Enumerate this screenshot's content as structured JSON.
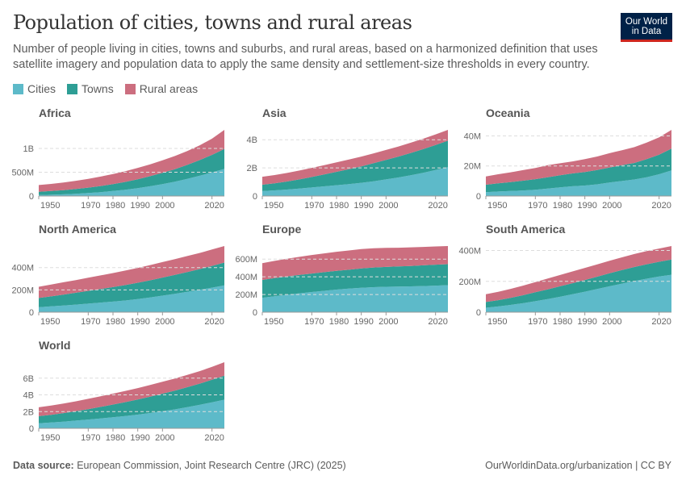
{
  "header": {
    "title": "Population of cities, towns and rural areas",
    "subtitle": "Number of people living in cities, towns and suburbs, and rural areas, based on a harmonized definition that uses satellite imagery and population data to apply the same density and settlement-size thresholds in every country.",
    "logo_text": "Our World in Data"
  },
  "footer": {
    "source_label": "Data source:",
    "source": "European Commission, Joint Research Centre (JRC) (2025)",
    "link": "OurWorldinData.org/urbanization | CC BY"
  },
  "colors": {
    "Cities": "#5dbac9",
    "Towns": "#2e9e95",
    "Rural areas": "#cc6e7f"
  },
  "chart_data": {
    "type": "area",
    "stacked": true,
    "legend": [
      "Cities",
      "Towns",
      "Rural areas"
    ],
    "legend_placement": "top-left",
    "x": [
      1950,
      1955,
      1960,
      1965,
      1970,
      1975,
      1980,
      1985,
      1990,
      1995,
      2000,
      2005,
      2010,
      2015,
      2020,
      2025
    ],
    "x_ticks": [
      1950,
      1970,
      1980,
      1990,
      2000,
      2020
    ],
    "unit": "millions of people",
    "grid": "horizontal dashed",
    "panels": [
      {
        "name": "Africa",
        "y_ticks": [
          {
            "v": 0,
            "l": "0"
          },
          {
            "v": 500,
            "l": "500M"
          },
          {
            "v": 1000,
            "l": "1B"
          }
        ],
        "series": [
          {
            "name": "Cities",
            "values": [
              20,
              27,
              36,
              48,
              63,
              82,
              105,
              132,
              165,
              205,
              250,
              300,
              360,
              425,
              495,
              570
            ]
          },
          {
            "name": "Towns",
            "values": [
              70,
              78,
              88,
              100,
              113,
              128,
              145,
              165,
              188,
              212,
              238,
              265,
              295,
              330,
              370,
              420
            ]
          },
          {
            "name": "Rural areas",
            "values": [
              140,
              150,
              160,
              172,
              185,
              198,
              212,
              225,
              238,
              250,
              262,
              275,
              290,
              310,
              340,
              400
            ]
          }
        ]
      },
      {
        "name": "Asia",
        "y_ticks": [
          {
            "v": 0,
            "l": "0"
          },
          {
            "v": 2000,
            "l": "2B"
          },
          {
            "v": 4000,
            "l": "4B"
          }
        ],
        "series": [
          {
            "name": "Cities",
            "values": [
              350,
              400,
              460,
              530,
              610,
              690,
              770,
              850,
              940,
              1050,
              1180,
              1320,
              1480,
              1650,
              1850,
              2050
            ]
          },
          {
            "name": "Towns",
            "values": [
              450,
              500,
              570,
              650,
              740,
              840,
              950,
              1060,
              1170,
              1280,
              1380,
              1480,
              1580,
              1680,
              1780,
              1880
            ]
          },
          {
            "name": "Rural areas",
            "values": [
              570,
              590,
              610,
              630,
              650,
              660,
              670,
              680,
              690,
              700,
              710,
              720,
              730,
              740,
              750,
              770
            ]
          }
        ]
      },
      {
        "name": "Oceania",
        "y_ticks": [
          {
            "v": 0,
            "l": "0"
          },
          {
            "v": 20,
            "l": "20M"
          },
          {
            "v": 40,
            "l": "40M"
          }
        ],
        "series": [
          {
            "name": "Cities",
            "values": [
              2.5,
              3,
              3.3,
              3.7,
              4.2,
              5,
              5.8,
              6.5,
              7,
              7.8,
              9,
              10,
              11,
              12.5,
              14.5,
              17
            ]
          },
          {
            "name": "Towns",
            "values": [
              5,
              5.5,
              6,
              6.5,
              7,
              7.5,
              8,
              8.5,
              9,
              9.5,
              10,
              10.5,
              11,
              12,
              13,
              14.5
            ]
          },
          {
            "name": "Rural areas",
            "values": [
              5.5,
              6,
              6.5,
              7,
              7.5,
              8,
              8,
              8,
              8.5,
              9,
              9.5,
              10,
              10.5,
              11,
              11.5,
              12.5
            ]
          }
        ]
      },
      {
        "name": "North America",
        "y_ticks": [
          {
            "v": 0,
            "l": "0"
          },
          {
            "v": 200,
            "l": "200M"
          },
          {
            "v": 400,
            "l": "400M"
          }
        ],
        "series": [
          {
            "name": "Cities",
            "values": [
              44,
              52,
              60,
              68,
              77,
              86,
              95,
              105,
              118,
              132,
              148,
              165,
              182,
              200,
              220,
              240
            ]
          },
          {
            "name": "Towns",
            "values": [
              83,
              90,
              98,
              106,
              114,
              122,
              130,
              138,
              146,
              154,
              162,
              170,
              178,
              186,
              195,
              205
            ]
          },
          {
            "name": "Rural areas",
            "values": [
              101,
              105,
              110,
              114,
              118,
              122,
              126,
              130,
              133,
              136,
              139,
              141,
              143,
              145,
              147,
              148
            ]
          }
        ]
      },
      {
        "name": "Europe",
        "y_ticks": [
          {
            "v": 0,
            "l": "0"
          },
          {
            "v": 200,
            "l": "200M"
          },
          {
            "v": 400,
            "l": "400M"
          },
          {
            "v": 600,
            "l": "600M"
          }
        ],
        "series": [
          {
            "name": "Cities",
            "values": [
              163,
              180,
              197,
              213,
              228,
              242,
              255,
              266,
              276,
              283,
              287,
              289,
              292,
              296,
              300,
              306
            ]
          },
          {
            "name": "Towns",
            "values": [
              202,
              205,
              207,
              208,
              209,
              210,
              212,
              214,
              218,
              222,
              225,
              228,
              231,
              234,
              237,
              237
            ]
          },
          {
            "name": "Rural areas",
            "values": [
              190,
              195,
              200,
              205,
              210,
              213,
              216,
              218,
              220,
              218,
              215,
              212,
              210,
              208,
              206,
              205
            ]
          }
        ]
      },
      {
        "name": "South America",
        "y_ticks": [
          {
            "v": 0,
            "l": "0"
          },
          {
            "v": 200,
            "l": "200M"
          },
          {
            "v": 400,
            "l": "400M"
          }
        ],
        "series": [
          {
            "name": "Cities",
            "values": [
              29,
              37,
              47,
              58,
              71,
              85,
              100,
              116,
              133,
              150,
              168,
              185,
              202,
              217,
              231,
              243
            ]
          },
          {
            "name": "Towns",
            "values": [
              37,
              41,
              46,
              52,
              58,
              63,
              68,
              72,
              76,
              80,
              84,
              88,
              91,
              94,
              96,
              98
            ]
          },
          {
            "name": "Rural areas",
            "values": [
              50,
              54,
              58,
              62,
              66,
              70,
              73,
              76,
              78,
              80,
              82,
              83,
              84,
              85,
              86,
              88
            ]
          }
        ]
      },
      {
        "name": "World",
        "y_ticks": [
          {
            "v": 0,
            "l": "0"
          },
          {
            "v": 2000,
            "l": "2B"
          },
          {
            "v": 4000,
            "l": "4B"
          },
          {
            "v": 6000,
            "l": "6B"
          }
        ],
        "series": [
          {
            "name": "Cities",
            "values": [
              609,
              699,
              803,
              921,
              1053,
              1190,
              1331,
              1476,
              1639,
              1828,
              2042,
              2269,
              2527,
              2801,
              3111,
              3426
            ]
          },
          {
            "name": "Towns",
            "values": [
              847,
              920,
              1015,
              1123,
              1241,
              1371,
              1513,
              1658,
              1807,
              1958,
              2099,
              2242,
              2386,
              2536,
              2691,
              2855
            ]
          },
          {
            "name": "Rural areas",
            "values": [
              1057,
              1100,
              1145,
              1190,
              1237,
              1271,
              1305,
              1337,
              1368,
              1393,
              1418,
              1441,
              1468,
              1499,
              1541,
              1624
            ]
          }
        ]
      }
    ]
  }
}
